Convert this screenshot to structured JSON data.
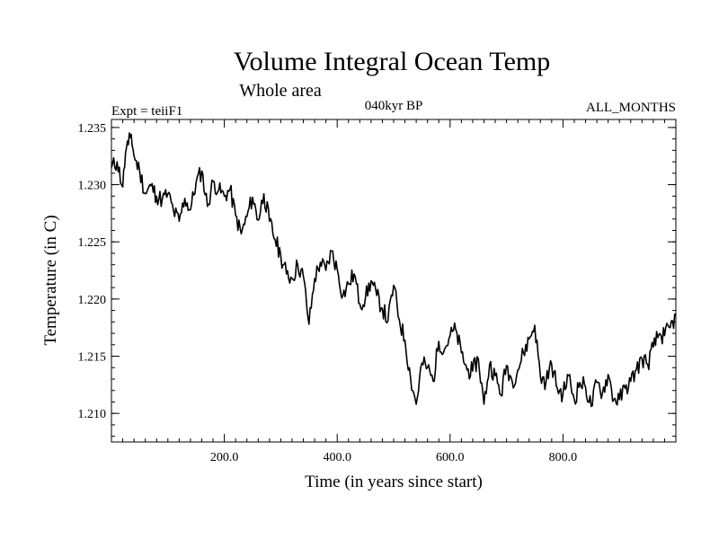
{
  "chart_data": {
    "type": "line",
    "title": "Volume Integral Ocean Temp",
    "subtitle": "Whole area",
    "annotations": {
      "left": "Expt = teiiF1",
      "center": "040kyr BP",
      "right": "ALL_MONTHS"
    },
    "xlabel": "Time (in years since start)",
    "ylabel": "Temperature (in C)",
    "xlim": [
      0,
      1000
    ],
    "ylim": [
      1.2075,
      1.2357
    ],
    "x_ticks": [
      200,
      400,
      600,
      800
    ],
    "x_tick_labels": [
      "200.0",
      "400.0",
      "600.0",
      "800.0"
    ],
    "y_ticks": [
      1.21,
      1.215,
      1.22,
      1.225,
      1.23,
      1.235
    ],
    "y_tick_labels": [
      "1.210",
      "1.215",
      "1.220",
      "1.225",
      "1.230",
      "1.235"
    ],
    "grid": false,
    "legend": "none",
    "line_color": "#000000",
    "series": [
      {
        "x": [
          0,
          10,
          20,
          25,
          30,
          35,
          40,
          50,
          60,
          70,
          80,
          90,
          100,
          110,
          120,
          130,
          140,
          150,
          160,
          170,
          180,
          190,
          200,
          210,
          220,
          230,
          240,
          250,
          260,
          270,
          280,
          290,
          300,
          310,
          320,
          330,
          340,
          350,
          360,
          370,
          380,
          390,
          400,
          410,
          420,
          430,
          440,
          450,
          460,
          470,
          480,
          490,
          500,
          510,
          520,
          530,
          540,
          550,
          560,
          570,
          580,
          590,
          600,
          610,
          620,
          630,
          640,
          650,
          660,
          670,
          680,
          690,
          700,
          710,
          720,
          730,
          740,
          750,
          760,
          770,
          780,
          790,
          800,
          810,
          820,
          830,
          840,
          850,
          860,
          870,
          880,
          890,
          900,
          910,
          920,
          930,
          940,
          950,
          960,
          970,
          980,
          990,
          1000
        ],
        "values": [
          1.2315,
          1.232,
          1.2298,
          1.2328,
          1.2335,
          1.2344,
          1.2325,
          1.2312,
          1.2292,
          1.2299,
          1.229,
          1.2287,
          1.2292,
          1.2277,
          1.2268,
          1.2288,
          1.2278,
          1.2302,
          1.2312,
          1.2281,
          1.2303,
          1.2295,
          1.229,
          1.2296,
          1.2273,
          1.2257,
          1.2272,
          1.2289,
          1.2269,
          1.2292,
          1.2268,
          1.2252,
          1.2238,
          1.2222,
          1.2218,
          1.223,
          1.222,
          1.2178,
          1.2218,
          1.2232,
          1.2225,
          1.2242,
          1.2226,
          1.2203,
          1.2213,
          1.2222,
          1.2196,
          1.2201,
          1.2216,
          1.2203,
          1.2192,
          1.2181,
          1.2212,
          1.2182,
          1.2164,
          1.2131,
          1.2108,
          1.2144,
          1.214,
          1.2128,
          1.2163,
          1.2156,
          1.2168,
          1.2173,
          1.2153,
          1.2138,
          1.2137,
          1.2148,
          1.2108,
          1.2143,
          1.2133,
          1.2116,
          1.2142,
          1.2128,
          1.2138,
          1.2153,
          1.2165,
          1.2177,
          1.2132,
          1.2128,
          1.2143,
          1.2122,
          1.2117,
          1.2133,
          1.2112,
          1.2127,
          1.2123,
          1.2106,
          1.2127,
          1.2118,
          1.2134,
          1.2112,
          1.2112,
          1.2122,
          1.2128,
          1.2138,
          1.2148,
          1.2143,
          1.2158,
          1.2169,
          1.2168,
          1.2175,
          1.2185
        ]
      }
    ]
  }
}
